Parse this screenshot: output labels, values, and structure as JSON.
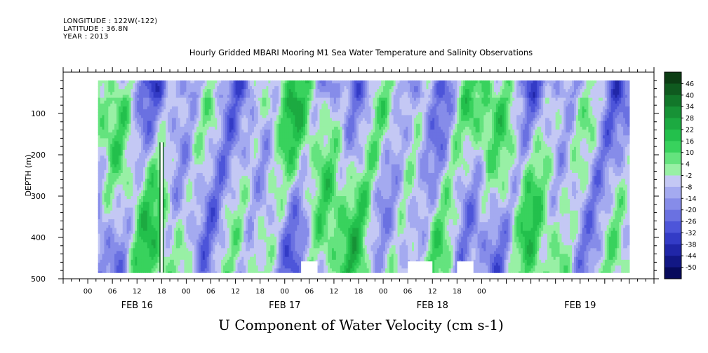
{
  "header": {
    "longitude": "LONGITUDE : 122W(-122)",
    "latitude": "LATITUDE : 36.8N",
    "year": "YEAR : 2013"
  },
  "chart_data": {
    "type": "heatmap",
    "title": "Hourly Gridded MBARI Mooring M1 Sea Water Temperature and Salinity Observations",
    "subtitle": "U Component of Water Velocity (cm s-1)",
    "xlabel": "",
    "ylabel": "DEPTH (m)",
    "x_range_hours": [
      -6,
      138
    ],
    "x_data_range_hours": [
      2.5,
      132
    ],
    "x_hour_ticks": [
      "00",
      "06",
      "12",
      "18",
      "00",
      "06",
      "12",
      "18",
      "00",
      "06",
      "12",
      "18",
      "00",
      "06",
      "12",
      "18",
      "00"
    ],
    "x_hour_tick_values": [
      0,
      6,
      12,
      18,
      24,
      30,
      36,
      42,
      48,
      54,
      60,
      66,
      72,
      78,
      84,
      90,
      96
    ],
    "x_day_labels": [
      "FEB 16",
      "FEB 17",
      "FEB 18",
      "FEB 19"
    ],
    "x_day_label_hours": [
      12,
      48,
      84,
      120
    ],
    "ylim": [
      0,
      500
    ],
    "y_data_range": [
      20,
      485
    ],
    "y_ticks": [
      100,
      200,
      300,
      400,
      500
    ],
    "colorbar": {
      "levels": [
        46,
        40,
        34,
        28,
        22,
        16,
        10,
        4,
        -2,
        -8,
        -14,
        -20,
        -26,
        -32,
        -38,
        -44,
        -50
      ],
      "colors": [
        "#0c3d14",
        "#0f5a1f",
        "#12772a",
        "#179236",
        "#1caa41",
        "#23c04c",
        "#38d25d",
        "#64e37e",
        "#98f0a5",
        "#c4c8f4",
        "#a4aaf0",
        "#868ce9",
        "#6a71e1",
        "#4d55d9",
        "#333bc6",
        "#2026a8",
        "#121785",
        "#070a5c"
      ]
    }
  }
}
